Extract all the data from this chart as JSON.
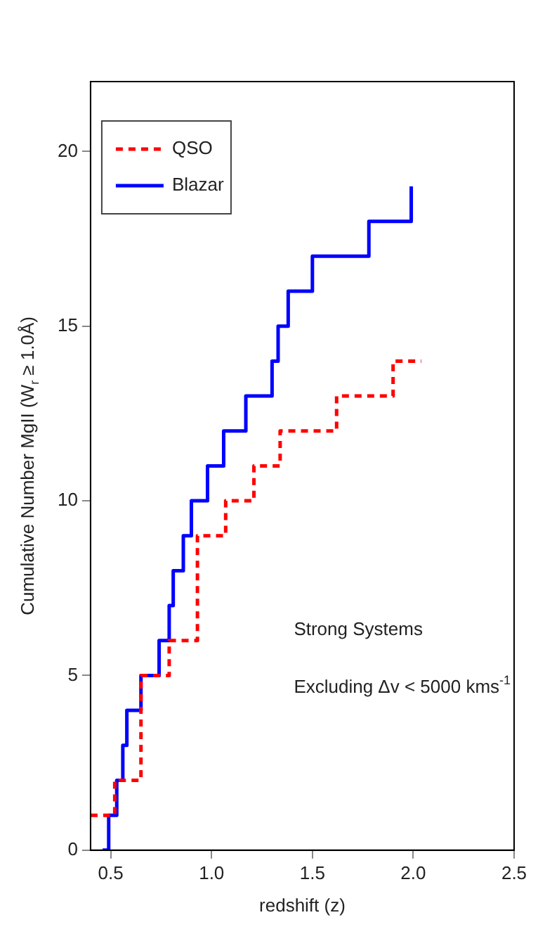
{
  "chart_data": {
    "type": "step",
    "xlabel": "redshift (z)",
    "ylabel": "Cumulative Number MgII (W$_{r}$ ≥ 1.0Å)",
    "xlim": [
      0.4,
      2.5
    ],
    "xticks": [
      {
        "value": 0.5,
        "label": "0.5"
      },
      {
        "value": 1,
        "label": "1.0"
      },
      {
        "value": 1.5,
        "label": "1.5"
      },
      {
        "value": 2,
        "label": "2.0"
      },
      {
        "value": 2.5,
        "label": "2.5"
      }
    ],
    "ylim": [
      0,
      22
    ],
    "yticks": [
      0,
      5,
      10,
      15,
      20
    ],
    "series": [
      {
        "name": "QSO",
        "color": "#ff0000",
        "line_style": "dashed",
        "x": [
          0.4,
          0.52,
          0.65,
          0.79,
          0.93,
          1.07,
          1.21,
          1.34,
          1.62,
          1.9,
          2.04
        ],
        "values": [
          1,
          2,
          5,
          6,
          9,
          10,
          11,
          12,
          13,
          14,
          14
        ]
      },
      {
        "name": "Blazar",
        "color": "#0000ff",
        "line_style": "solid",
        "x": [
          0.46,
          0.49,
          0.53,
          0.56,
          0.58,
          0.65,
          0.74,
          0.79,
          0.81,
          0.86,
          0.9,
          0.98,
          1.06,
          1.17,
          1.3,
          1.33,
          1.38,
          1.5,
          1.78,
          1.99
        ],
        "values": [
          0,
          1,
          2,
          3,
          4,
          5,
          6,
          7,
          8,
          9,
          10,
          11,
          12,
          13,
          14,
          15,
          16,
          17,
          18,
          19
        ]
      }
    ],
    "legend": "top left",
    "grid": false,
    "annotations": [
      "Strong Systems",
      "Excluding Δv < 5000 kms$^{-1}$"
    ]
  }
}
